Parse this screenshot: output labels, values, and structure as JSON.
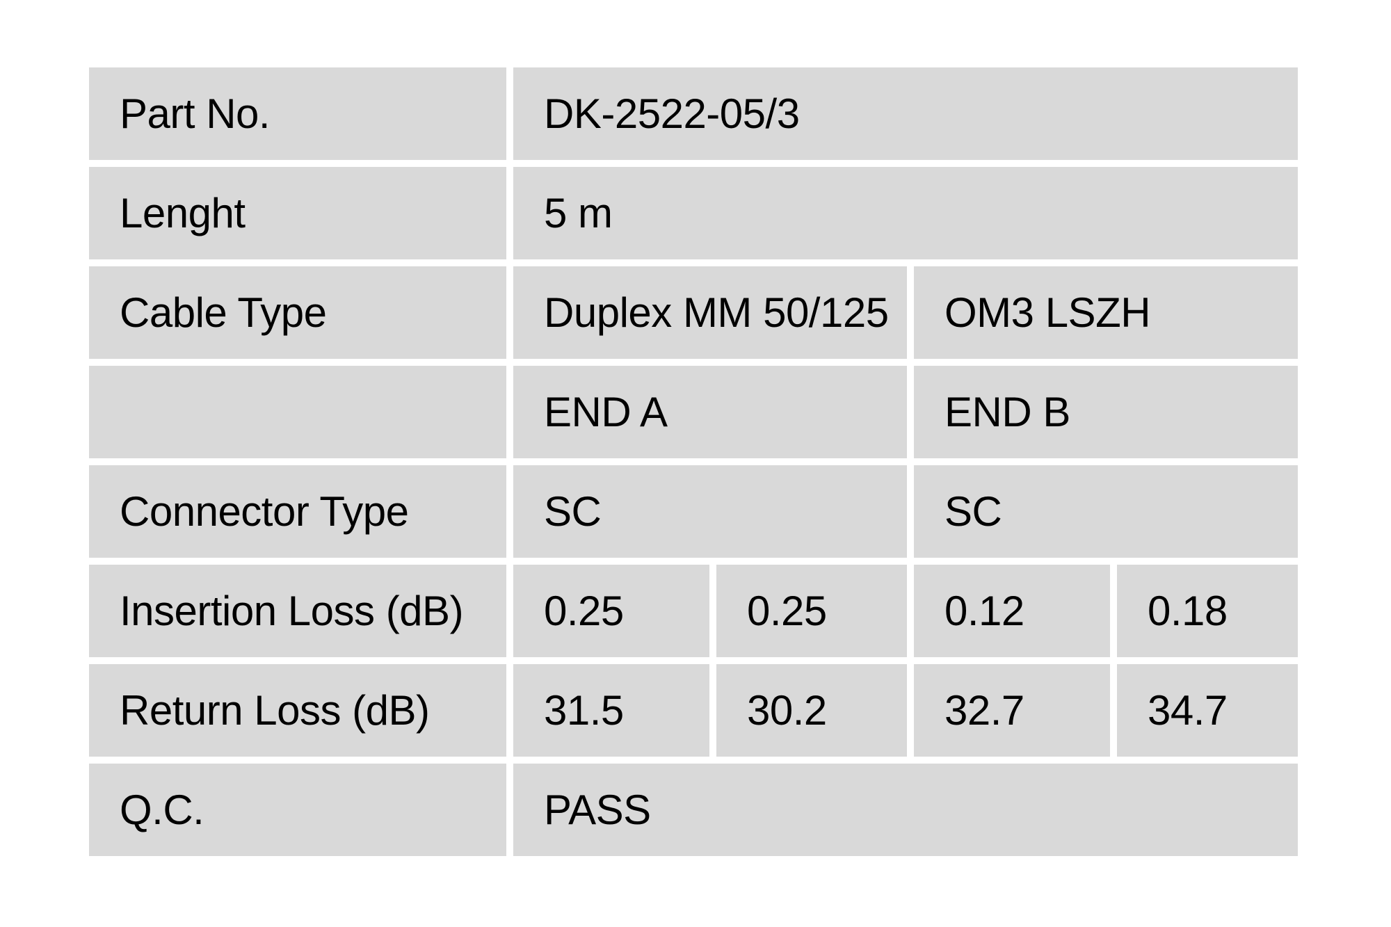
{
  "page": {
    "background_color": "#ffffff"
  },
  "table": {
    "cell_background_color": "#d9d9d9",
    "text_color": "#000000",
    "rows": {
      "part_no": {
        "label": "Part No.",
        "value": "DK-2522-05/3"
      },
      "length": {
        "label": "Lenght",
        "value": "5 m"
      },
      "cable_type": {
        "label": "Cable Type",
        "value_a": "Duplex MM 50/125",
        "value_b": "OM3 LSZH"
      },
      "ends_header": {
        "label": "",
        "end_a": "END A",
        "end_b": "END B"
      },
      "connector_type": {
        "label": "Connector Type",
        "end_a": "SC",
        "end_b": "SC"
      },
      "insertion_loss": {
        "label": "Insertion Loss (dB)",
        "end_a_1": "0.25",
        "end_a_2": "0.25",
        "end_b_1": "0.12",
        "end_b_2": "0.18"
      },
      "return_loss": {
        "label": "Return Loss (dB)",
        "end_a_1": "31.5",
        "end_a_2": "30.2",
        "end_b_1": "32.7",
        "end_b_2": "34.7"
      },
      "qc": {
        "label": "Q.C.",
        "value": "PASS"
      }
    }
  }
}
